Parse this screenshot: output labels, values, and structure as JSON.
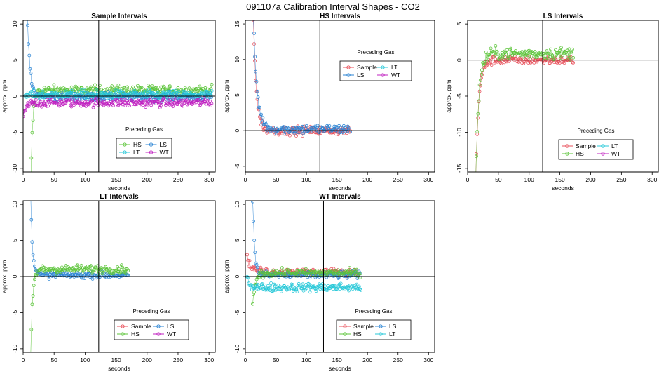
{
  "figure_title": "091107a   Calibration Interval Shapes - CO2",
  "colors": {
    "Sample": "#e8505b",
    "HS": "#5cc43a",
    "LS": "#2e86d4",
    "LT": "#28c8d8",
    "WT": "#c020c0"
  },
  "chart_data": [
    {
      "type": "scatter",
      "title": "Sample Intervals",
      "xlabel": "seconds",
      "ylabel": "approx. ppm",
      "xlim": [
        0,
        310
      ],
      "ylim": [
        -10.5,
        10.5
      ],
      "xticks": [
        0,
        50,
        100,
        150,
        200,
        250,
        300
      ],
      "yticks": [
        -10,
        -5,
        0,
        5,
        10
      ],
      "vline": 122,
      "hline": 0,
      "legend_title": "Preceding Gas",
      "legend_position": "lower-middle",
      "legend": [
        "HS",
        "LS",
        "LT",
        "WT"
      ],
      "series": [
        {
          "name": "HS",
          "start": 12,
          "end": 305,
          "spike_start": -14,
          "spike_decay": 3,
          "level": 0.8,
          "noise": 0.8
        },
        {
          "name": "LS",
          "start": 6,
          "end": 305,
          "spike_start": 14,
          "spike_decay": 4,
          "level": -0.1,
          "noise": 0.7
        },
        {
          "name": "LT",
          "start": 3,
          "end": 305,
          "spike_start": 0,
          "spike_decay": 4,
          "level": 0.2,
          "noise": 0.7
        },
        {
          "name": "WT",
          "start": 0,
          "end": 305,
          "spike_start": -3,
          "spike_decay": 5,
          "level": -0.9,
          "noise": 0.7
        }
      ]
    },
    {
      "type": "scatter",
      "title": "HS Intervals",
      "xlabel": "seconds",
      "ylabel": "approx. ppm",
      "xlim": [
        0,
        310
      ],
      "ylim": [
        -5.8,
        15.5
      ],
      "xticks": [
        0,
        50,
        100,
        150,
        200,
        250,
        300
      ],
      "yticks": [
        -5,
        0,
        5,
        10,
        15
      ],
      "vline": 122,
      "hline": 0,
      "legend_title": "Preceding Gas",
      "legend_position": "top-right",
      "legend": [
        "Sample",
        "LT",
        "LS",
        "WT"
      ],
      "series": [
        {
          "name": "Sample",
          "start": 13,
          "end": 172,
          "spike_start": 16,
          "spike_decay": 5,
          "level": 0.0,
          "noise": 0.7
        },
        {
          "name": "LS",
          "start": 13,
          "end": 172,
          "spike_start": 16,
          "spike_decay": 6,
          "level": 0.2,
          "noise": 0.8
        }
      ]
    },
    {
      "type": "scatter",
      "title": "LS Intervals",
      "xlabel": "seconds",
      "ylabel": "approx. ppm",
      "xlim": [
        0,
        310
      ],
      "ylim": [
        -15.5,
        5.5
      ],
      "xticks": [
        0,
        50,
        100,
        150,
        200,
        250,
        300
      ],
      "yticks": [
        -15,
        -10,
        -5,
        0,
        5
      ],
      "vline": 122,
      "hline": 0,
      "legend_title": "Preceding Gas",
      "legend_position": "lower-right",
      "legend": [
        "Sample",
        "LT",
        "HS",
        "WT"
      ],
      "series": [
        {
          "name": "Sample",
          "start": 13,
          "end": 172,
          "spike_start": -17,
          "spike_decay": 5,
          "level": 0.0,
          "noise": 0.7
        },
        {
          "name": "HS",
          "start": 13,
          "end": 172,
          "spike_start": -17,
          "spike_decay": 5,
          "level": 0.9,
          "noise": 1.0
        }
      ]
    },
    {
      "type": "scatter",
      "title": "LT Intervals",
      "xlabel": "seconds",
      "ylabel": "approx. ppm",
      "xlim": [
        0,
        310
      ],
      "ylim": [
        -10.5,
        10.5
      ],
      "xticks": [
        0,
        50,
        100,
        150,
        200,
        250,
        300
      ],
      "yticks": [
        -10,
        -5,
        0,
        5,
        10
      ],
      "vline": 122,
      "hline": 0,
      "legend_title": "Preceding Gas",
      "legend_position": "lower-right",
      "legend": [
        "Sample",
        "LS",
        "HS",
        "WT"
      ],
      "series": [
        {
          "name": "LS",
          "start": 12,
          "end": 170,
          "spike_start": 12,
          "spike_decay": 3,
          "level": 0.2,
          "noise": 0.5
        },
        {
          "name": "HS",
          "start": 12,
          "end": 170,
          "spike_start": -12,
          "spike_decay": 3,
          "level": 1.0,
          "noise": 0.7
        }
      ]
    },
    {
      "type": "scatter",
      "title": "WT Intervals",
      "xlabel": "seconds",
      "ylabel": "approx. ppm",
      "xlim": [
        0,
        310
      ],
      "ylim": [
        -10.5,
        10.5
      ],
      "xticks": [
        0,
        50,
        100,
        150,
        200,
        250,
        300
      ],
      "yticks": [
        -10,
        -5,
        0,
        5,
        10
      ],
      "vline": 128,
      "hline": 0,
      "legend_title": "Preceding Gas",
      "legend_position": "lower-right",
      "legend": [
        "Sample",
        "LS",
        "HS",
        "LT"
      ],
      "series": [
        {
          "name": "Sample",
          "start": 3,
          "end": 185,
          "spike_start": 2.5,
          "spike_decay": 8,
          "level": 0.6,
          "noise": 0.6
        },
        {
          "name": "LS",
          "start": 12,
          "end": 190,
          "spike_start": 11,
          "spike_decay": 3,
          "level": 0.2,
          "noise": 0.6
        },
        {
          "name": "HS",
          "start": 12,
          "end": 190,
          "spike_start": -4,
          "spike_decay": 4,
          "level": 0.5,
          "noise": 0.6
        },
        {
          "name": "LT",
          "start": 3,
          "end": 190,
          "spike_start": 0,
          "spike_decay": 4,
          "level": -1.5,
          "noise": 0.7
        }
      ]
    }
  ]
}
